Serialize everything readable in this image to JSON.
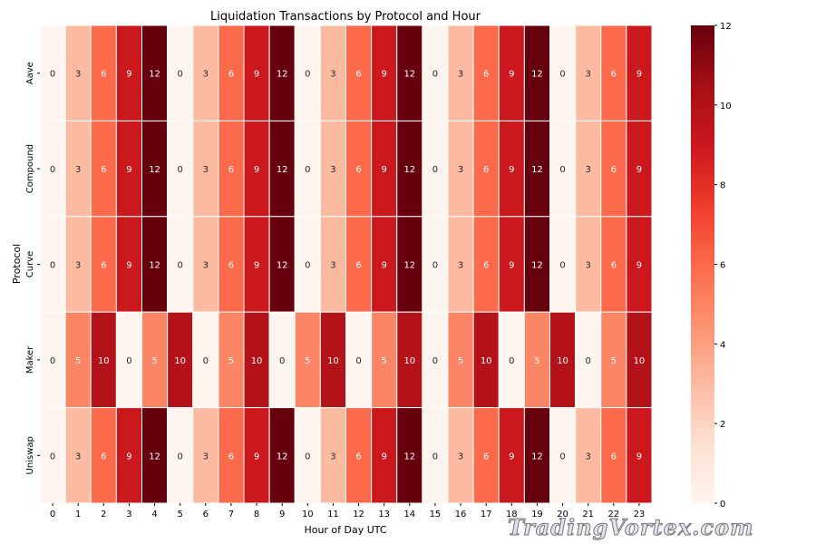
{
  "chart_data": {
    "type": "heatmap",
    "title": "Liquidation Transactions by Protocol and Hour",
    "xlabel": "Hour of Day UTC",
    "ylabel": "Protocol",
    "x": [
      "0",
      "1",
      "2",
      "3",
      "4",
      "5",
      "6",
      "7",
      "8",
      "9",
      "10",
      "11",
      "12",
      "13",
      "14",
      "15",
      "16",
      "17",
      "18",
      "19",
      "20",
      "21",
      "22",
      "23"
    ],
    "y": [
      "Aave",
      "Compound",
      "Curve",
      "Maker",
      "Uniswap"
    ],
    "values": [
      [
        0,
        3,
        6,
        9,
        12,
        0,
        3,
        6,
        9,
        12,
        0,
        3,
        6,
        9,
        12,
        0,
        3,
        6,
        9,
        12,
        0,
        3,
        6,
        9
      ],
      [
        0,
        3,
        6,
        9,
        12,
        0,
        3,
        6,
        9,
        12,
        0,
        3,
        6,
        9,
        12,
        0,
        3,
        6,
        9,
        12,
        0,
        3,
        6,
        9
      ],
      [
        0,
        3,
        6,
        9,
        12,
        0,
        3,
        6,
        9,
        12,
        0,
        3,
        6,
        9,
        12,
        0,
        3,
        6,
        9,
        12,
        0,
        3,
        6,
        9
      ],
      [
        0,
        5,
        10,
        0,
        5,
        10,
        0,
        5,
        10,
        0,
        5,
        10,
        0,
        5,
        10,
        0,
        5,
        10,
        0,
        5,
        10,
        0,
        5,
        10
      ],
      [
        0,
        3,
        6,
        9,
        12,
        0,
        3,
        6,
        9,
        12,
        0,
        3,
        6,
        9,
        12,
        0,
        3,
        6,
        9,
        12,
        0,
        3,
        6,
        9
      ]
    ],
    "colormap": "Reds",
    "vmin": 0,
    "vmax": 12,
    "colorbar_ticks": [
      0,
      2,
      4,
      6,
      8,
      10,
      12
    ],
    "annotated": true
  },
  "watermark": "TradingVortex.com"
}
